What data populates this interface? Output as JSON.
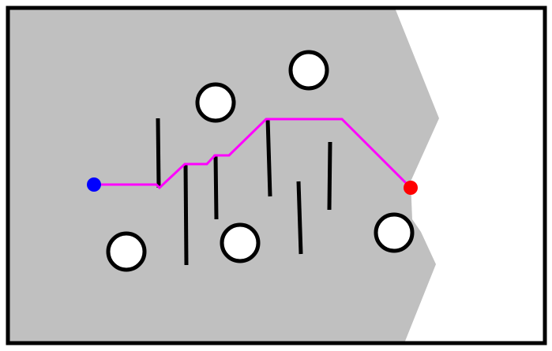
{
  "scene": {
    "type": "path-planning-map",
    "background_color": "#ffffff",
    "border_color": "#000000",
    "explored_region_color": "#c0c0c0",
    "obstacle_fill_color": "#ffffff",
    "obstacle_stroke_color": "#000000",
    "wall_color": "#000000",
    "path_color": "#ff00ff",
    "start_color": "#0000ff",
    "goal_color": "#ff0000"
  }
}
